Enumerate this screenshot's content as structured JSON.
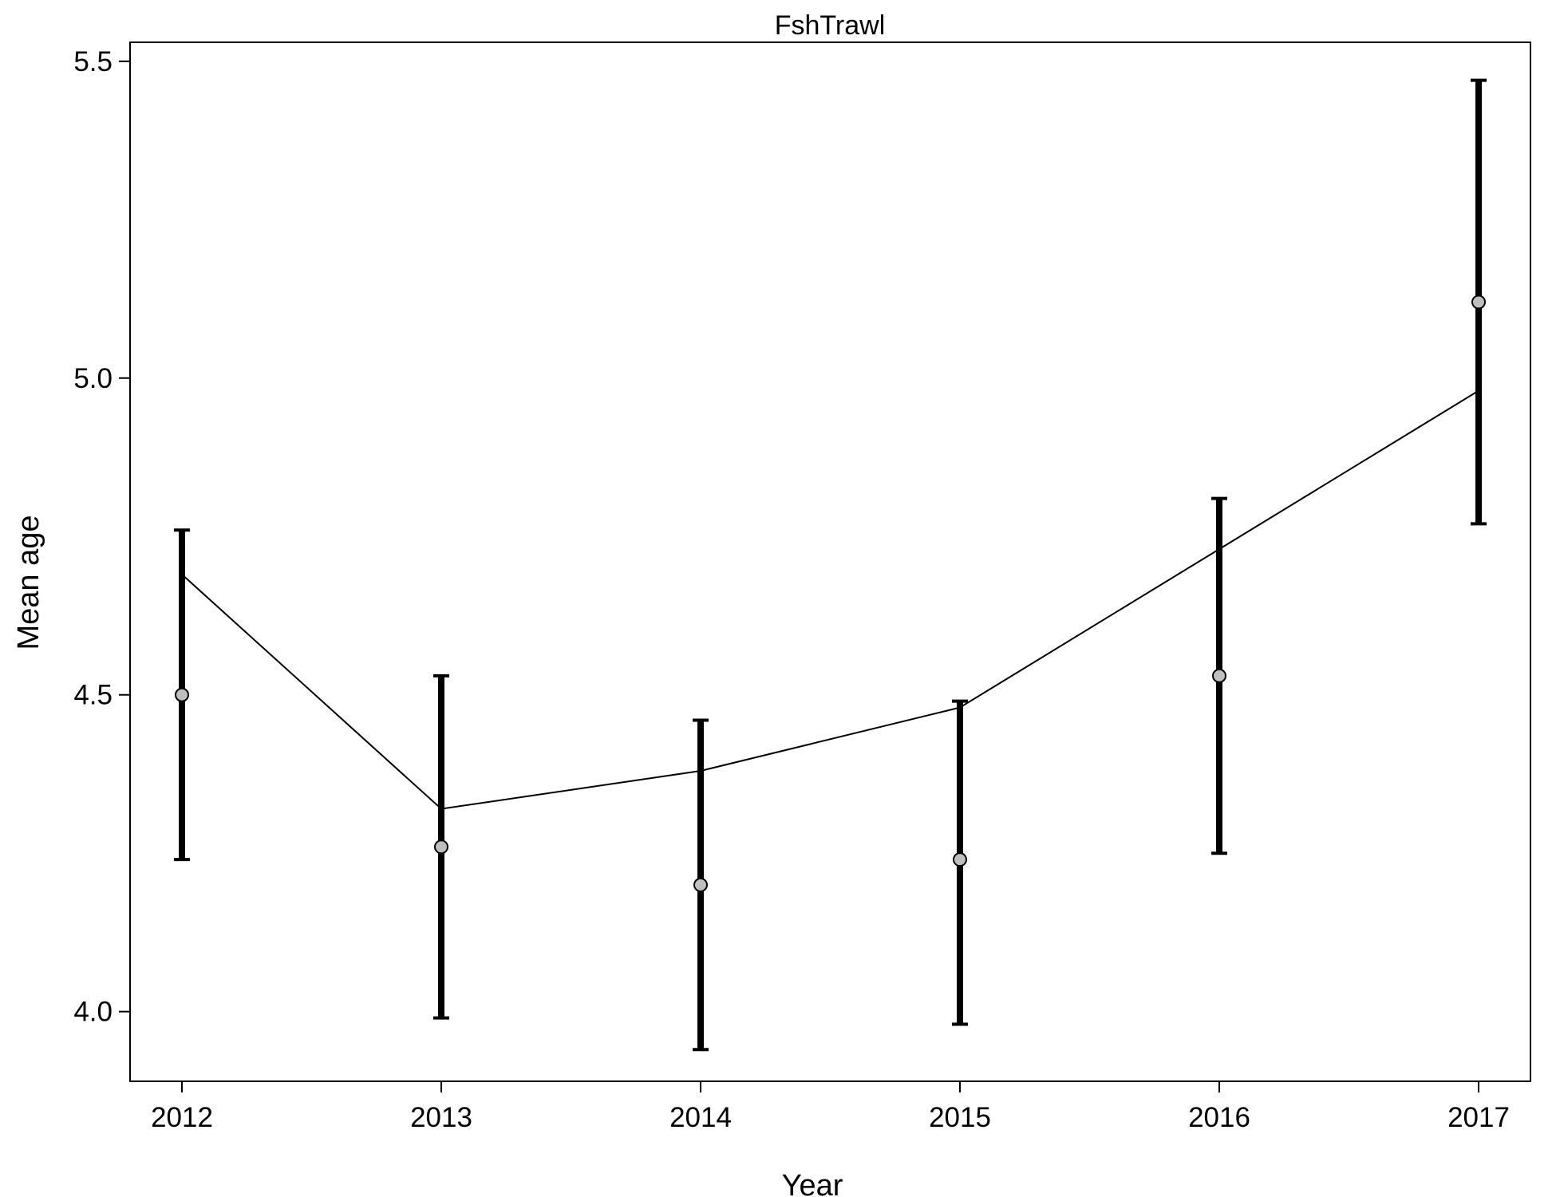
{
  "chart_data": {
    "type": "line",
    "title": "FshTrawl",
    "xlabel": "Year",
    "ylabel": "Mean age",
    "x": [
      2012,
      2013,
      2014,
      2015,
      2016,
      2017
    ],
    "xticks": [
      "2012",
      "2013",
      "2014",
      "2015",
      "2016",
      "2017"
    ],
    "yticks": [
      "4.0",
      "4.5",
      "5.0",
      "5.5"
    ],
    "xlim": [
      2011.8,
      2017.2
    ],
    "ylim": [
      3.89,
      5.53
    ],
    "series": [
      {
        "kind": "observed-points-with-error-bars",
        "values": [
          4.5,
          4.26,
          4.2,
          4.24,
          4.53,
          5.12
        ],
        "lower": [
          4.24,
          3.99,
          3.94,
          3.98,
          4.25,
          4.77
        ],
        "upper": [
          4.76,
          4.53,
          4.46,
          4.49,
          4.81,
          5.47
        ]
      },
      {
        "kind": "expected-line",
        "values": [
          4.69,
          4.32,
          4.38,
          4.48,
          4.73,
          4.98
        ]
      }
    ],
    "colors": {
      "point_fill": "#bfbfbf",
      "stroke": "#000000"
    },
    "grid": false,
    "legend": "none"
  }
}
